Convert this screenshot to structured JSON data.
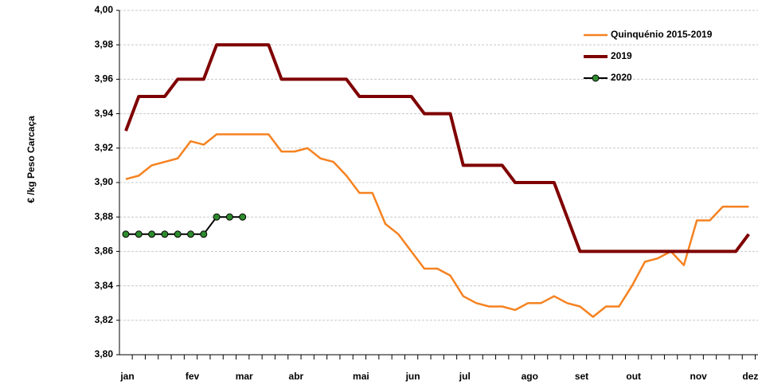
{
  "chart_data": {
    "type": "line",
    "y_label": "€ /kg Peso Carcaça",
    "categories": [
      "jan",
      null,
      null,
      null,
      null,
      "fev",
      null,
      null,
      null,
      "mar",
      null,
      null,
      null,
      "abr",
      null,
      null,
      null,
      null,
      "mai",
      null,
      null,
      null,
      "jun",
      null,
      null,
      null,
      "jul",
      null,
      null,
      null,
      null,
      "ago",
      null,
      null,
      null,
      "set",
      null,
      null,
      null,
      "out",
      null,
      null,
      null,
      null,
      "nov",
      null,
      null,
      null,
      "dez"
    ],
    "series": [
      {
        "name": "Quinquénio 2015-2019",
        "color": "#f58220",
        "width": 2.5,
        "markers": false,
        "values": [
          3.902,
          3.904,
          3.91,
          3.912,
          3.914,
          3.924,
          3.922,
          3.928,
          3.928,
          3.928,
          3.928,
          3.928,
          3.918,
          3.918,
          3.92,
          3.914,
          3.912,
          3.904,
          3.894,
          3.894,
          3.876,
          3.87,
          3.86,
          3.85,
          3.85,
          3.846,
          3.834,
          3.83,
          3.828,
          3.828,
          3.826,
          3.83,
          3.83,
          3.834,
          3.83,
          3.828,
          3.822,
          3.828,
          3.828,
          3.84,
          3.854,
          3.856,
          3.86,
          3.852,
          3.878,
          3.878,
          3.886,
          3.886,
          3.886
        ]
      },
      {
        "name": "2019",
        "color": "#7f0000",
        "width": 4,
        "markers": false,
        "values": [
          3.93,
          3.95,
          3.95,
          3.95,
          3.96,
          3.96,
          3.96,
          3.98,
          3.98,
          3.98,
          3.98,
          3.98,
          3.96,
          3.96,
          3.96,
          3.96,
          3.96,
          3.96,
          3.95,
          3.95,
          3.95,
          3.95,
          3.95,
          3.94,
          3.94,
          3.94,
          3.91,
          3.91,
          3.91,
          3.91,
          3.9,
          3.9,
          3.9,
          3.9,
          3.88,
          3.86,
          3.86,
          3.86,
          3.86,
          3.86,
          3.86,
          3.86,
          3.86,
          3.86,
          3.86,
          3.86,
          3.86,
          3.86,
          3.87
        ]
      },
      {
        "name": "2020",
        "color": "#000000",
        "marker_color": "#2e8b2e",
        "width": 2,
        "markers": true,
        "values": [
          3.87,
          3.87,
          3.87,
          3.87,
          3.87,
          3.87,
          3.87,
          3.88,
          3.88,
          3.88,
          null,
          null,
          null,
          null,
          null,
          null,
          null,
          null,
          null,
          null,
          null,
          null,
          null,
          null,
          null,
          null,
          null,
          null,
          null,
          null,
          null,
          null,
          null,
          null,
          null,
          null,
          null,
          null,
          null,
          null,
          null,
          null,
          null,
          null,
          null,
          null,
          null,
          null,
          null
        ]
      }
    ],
    "ylim": [
      3.8,
      4.0
    ],
    "yticks": [
      {
        "value": 3.8,
        "label": "3,80"
      },
      {
        "value": 3.82,
        "label": "3,82"
      },
      {
        "value": 3.84,
        "label": "3,84"
      },
      {
        "value": 3.86,
        "label": "3,86"
      },
      {
        "value": 3.88,
        "label": "3,88"
      },
      {
        "value": 3.9,
        "label": "3,90"
      },
      {
        "value": 3.92,
        "label": "3,92"
      },
      {
        "value": 3.94,
        "label": "3,94"
      },
      {
        "value": 3.96,
        "label": "3,96"
      },
      {
        "value": 3.98,
        "label": "3,98"
      },
      {
        "value": 4.0,
        "label": "4,00"
      }
    ],
    "grid": true,
    "legend": "top-right"
  }
}
